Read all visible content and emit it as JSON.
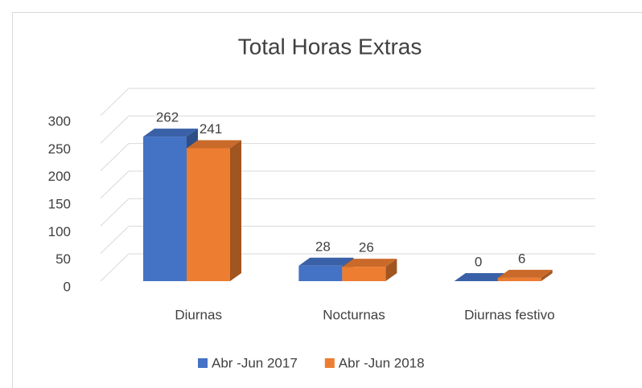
{
  "chart_data": {
    "type": "bar3d",
    "title": "Total Horas Extras",
    "categories": [
      "Diurnas",
      "Nocturnas",
      "Diurnas festivo"
    ],
    "series": [
      {
        "name": "Abr -Jun 2017",
        "color": "#4472c4",
        "values": [
          262,
          28,
          0
        ]
      },
      {
        "name": "Abr -Jun 2018",
        "color": "#ed7d31",
        "values": [
          241,
          26,
          6
        ]
      }
    ],
    "ylim": [
      0,
      300
    ],
    "yticks": [
      0,
      50,
      100,
      150,
      200,
      250,
      300
    ],
    "grid": true,
    "legend": "bottom"
  }
}
